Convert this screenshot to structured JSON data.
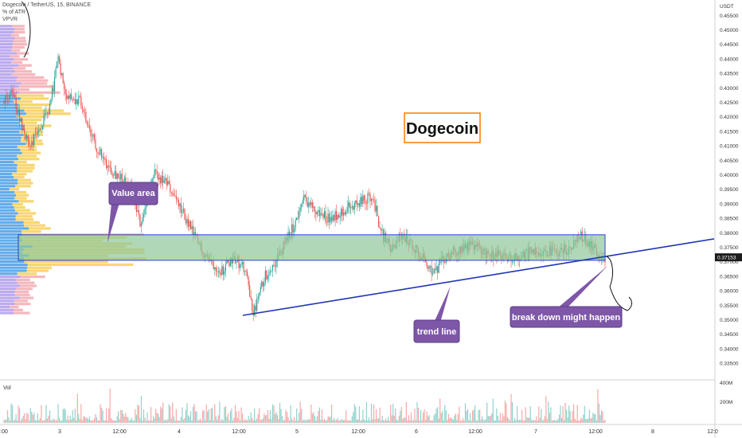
{
  "header": {
    "symbol": "Dogecoin / TetherUS, 15, BINANCE",
    "indicator_1": "% of ATR",
    "indicator_2": "VPVR"
  },
  "axis": {
    "currency_label": "USDT",
    "current_price_label": "0.37153",
    "volume_label": "Vol",
    "volume_ticks": [
      "400M",
      "200M"
    ]
  },
  "annotations": {
    "title": "Dogecoin",
    "value_area": "Value area",
    "trend_line": "trend line",
    "break_down": "break down might  happen"
  },
  "colors": {
    "background": "#ffffff",
    "up_candle": "#26a69a",
    "down_candle": "#ef5350",
    "value_area_fill": "#8fc89a",
    "value_area_border": "#2b3fd6",
    "trend_line": "#1f35b5",
    "callout_fill": "#7e57a8",
    "title_border": "#f57c00",
    "vp_blue": "#2f8fe3",
    "vp_yellow": "#f5c842",
    "vp_purple": "#a58ee8",
    "vp_pink": "#f0a0a8"
  },
  "chart_data": {
    "type": "candlestick",
    "y_axis_ticks": [
      "0.45500",
      "0.45000",
      "0.44500",
      "0.44000",
      "0.43500",
      "0.43000",
      "0.42500",
      "0.42000",
      "0.41500",
      "0.41000",
      "0.40500",
      "0.40000",
      "0.39500",
      "0.39000",
      "0.38500",
      "0.38000",
      "0.37500",
      "0.37000",
      "0.36500",
      "0.36000",
      "0.35500",
      "0.35000",
      "0.34500",
      "0.34000",
      "0.33500"
    ],
    "ylim": [
      0.332,
      0.457
    ],
    "x_axis_ticks": [
      ":00",
      "3",
      "12:00",
      "4",
      "12:00",
      "5",
      "12:00",
      "6",
      "12:00",
      "7",
      "12:00",
      "8",
      "12:0"
    ],
    "value_area": {
      "low": 0.3705,
      "high": 0.3793
    },
    "trend_line": {
      "start": 0.3515,
      "end": 0.3779
    },
    "current_price": 0.37153,
    "price_path": [
      [
        0.0,
        0.425
      ],
      [
        0.03,
        0.428
      ],
      [
        0.06,
        0.418
      ],
      [
        0.09,
        0.41
      ],
      [
        0.12,
        0.415
      ],
      [
        0.16,
        0.422
      ],
      [
        0.19,
        0.44
      ],
      [
        0.22,
        0.428
      ],
      [
        0.27,
        0.425
      ],
      [
        0.3,
        0.415
      ],
      [
        0.35,
        0.405
      ],
      [
        0.4,
        0.4
      ],
      [
        0.45,
        0.395
      ],
      [
        0.48,
        0.383
      ],
      [
        0.53,
        0.4
      ],
      [
        0.58,
        0.396
      ],
      [
        0.63,
        0.387
      ],
      [
        0.68,
        0.377
      ],
      [
        0.73,
        0.37
      ],
      [
        0.77,
        0.367
      ],
      [
        0.81,
        0.372
      ],
      [
        0.85,
        0.367
      ],
      [
        0.88,
        0.352
      ],
      [
        0.92,
        0.365
      ],
      [
        0.97,
        0.372
      ],
      [
        1.02,
        0.382
      ],
      [
        1.06,
        0.392
      ],
      [
        1.1,
        0.387
      ],
      [
        1.15,
        0.385
      ],
      [
        1.2,
        0.388
      ],
      [
        1.25,
        0.39
      ],
      [
        1.3,
        0.393
      ],
      [
        1.33,
        0.38
      ],
      [
        1.37,
        0.374
      ],
      [
        1.4,
        0.379
      ],
      [
        1.44,
        0.376
      ],
      [
        1.48,
        0.371
      ],
      [
        1.52,
        0.366
      ],
      [
        1.56,
        0.372
      ],
      [
        1.6,
        0.374
      ],
      [
        1.65,
        0.376
      ],
      [
        1.7,
        0.373
      ],
      [
        1.75,
        0.372
      ],
      [
        1.8,
        0.371
      ],
      [
        1.85,
        0.373
      ],
      [
        1.9,
        0.374
      ],
      [
        1.95,
        0.373
      ],
      [
        2.0,
        0.375
      ],
      [
        2.03,
        0.379
      ],
      [
        2.06,
        0.377
      ],
      [
        2.09,
        0.373
      ],
      [
        2.12,
        0.3715
      ]
    ]
  }
}
